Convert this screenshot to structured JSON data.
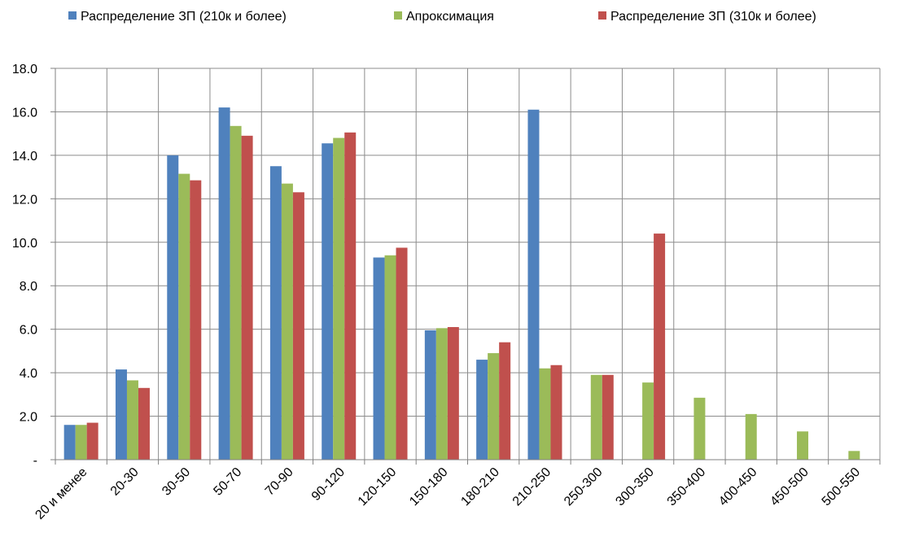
{
  "chart_data": {
    "type": "bar",
    "title": "",
    "xlabel": "",
    "ylabel": "",
    "ylim": [
      0,
      18
    ],
    "yticks": [
      "-",
      "2.0",
      "4.0",
      "6.0",
      "8.0",
      "10.0",
      "12.0",
      "14.0",
      "16.0",
      "18.0"
    ],
    "grid": true,
    "legend_position": "top",
    "categories": [
      "20 и менее",
      "20-30",
      "30-50",
      "50-70",
      "70-90",
      "90-120",
      "120-150",
      "150-180",
      "180-210",
      "210-250",
      "250-300",
      "300-350",
      "350-400",
      "400-450",
      "450-500",
      "500-550"
    ],
    "series": [
      {
        "name": "Распределение ЗП (210к и более)",
        "color": "#4F81BD",
        "values": [
          1.6,
          4.15,
          14.0,
          16.2,
          13.5,
          14.55,
          9.3,
          5.95,
          4.6,
          16.1,
          null,
          null,
          null,
          null,
          null,
          null
        ]
      },
      {
        "name": "Апроксимация",
        "color": "#9BBB59",
        "values": [
          1.6,
          3.65,
          13.15,
          15.35,
          12.7,
          14.8,
          9.4,
          6.05,
          4.9,
          4.2,
          3.9,
          3.55,
          2.85,
          2.1,
          1.3,
          0.4
        ]
      },
      {
        "name": "Распределение ЗП (310к и более)",
        "color": "#C0504D",
        "values": [
          1.7,
          3.3,
          12.85,
          14.9,
          12.3,
          15.05,
          9.75,
          6.1,
          5.4,
          4.35,
          3.9,
          10.4,
          null,
          null,
          null,
          null
        ]
      }
    ]
  }
}
